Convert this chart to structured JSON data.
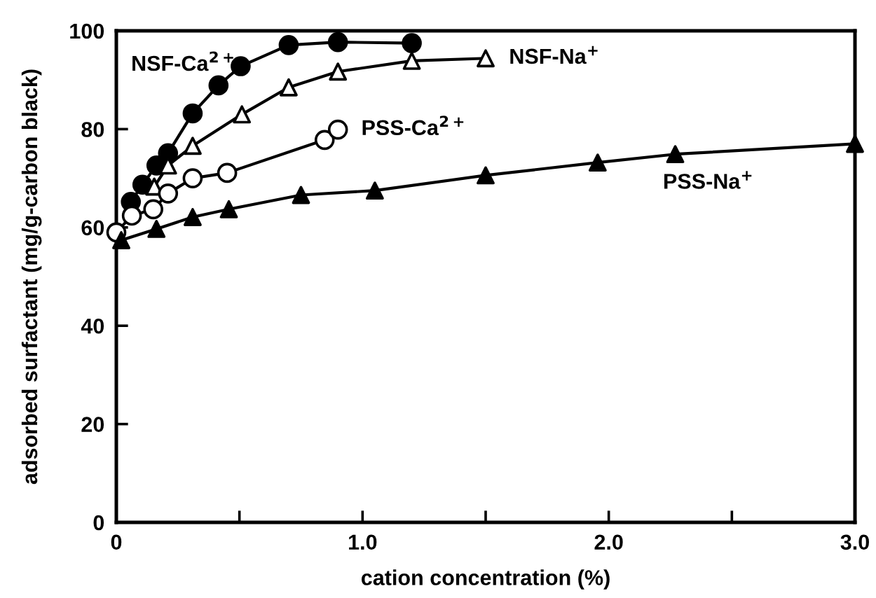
{
  "chart_data": {
    "type": "line",
    "xlabel": "cation concentration (%)",
    "ylabel": "adsorbed surfactant (mg/g-carbon black)",
    "xlim": [
      0,
      3.0
    ],
    "ylim": [
      0,
      100
    ],
    "xticks": [
      0,
      {
        "value": 0.5,
        "label": null
      },
      {
        "value": 1.0,
        "label": "1.0"
      },
      {
        "value": 1.5,
        "label": null
      },
      {
        "value": 2.0,
        "label": "2.0"
      },
      {
        "value": 2.5,
        "label": null
      },
      {
        "value": 3.0,
        "label": "3.0"
      }
    ],
    "yticks": [
      0,
      20,
      40,
      60,
      80,
      100
    ],
    "grid": false,
    "legend": false,
    "line_style": "solid",
    "series": [
      {
        "name": "NSF-Ca$^{2+}$",
        "color": "#000000",
        "marker": "circle",
        "colors": [
          "#000000",
          "#000000",
          "#000000",
          "#000000",
          "#000000",
          "#000000",
          "#000000",
          "#000000",
          "#000000",
          "#000000"
        ],
        "x": [
          0.059,
          0.106,
          0.163,
          0.21,
          0.31,
          0.415,
          0.505,
          0.7,
          0.9,
          1.2
        ],
        "values": [
          65.2,
          68.7,
          72.6,
          75.1,
          83.2,
          88.9,
          92.8,
          97.1,
          97.7,
          97.5
        ]
      },
      {
        "name": "NSF-Na$^{+}$",
        "color": "#000000",
        "marker": "triangle",
        "colors": [
          "#ffffff",
          "#ffffff",
          "#ffffff",
          "#ffffff",
          "#ffffff",
          "#ffffff",
          "#ffffff",
          "#ffffff"
        ],
        "x": [
          0.154,
          0.21,
          0.31,
          0.51,
          0.7,
          0.9,
          1.2,
          1.5
        ],
        "values": [
          68.3,
          72.6,
          76.6,
          83.0,
          88.5,
          91.7,
          93.9,
          94.4
        ]
      },
      {
        "name": "PSS-Ca$^{2+}$",
        "color": "#000000",
        "marker": "circle",
        "colors": [
          "#ffffff",
          "#ffffff",
          "#ffffff",
          "#ffffff",
          "#ffffff",
          "#ffffff",
          "#ffffff",
          "#ffffff"
        ],
        "x": [
          0.0,
          0.063,
          0.15,
          0.21,
          0.31,
          0.45,
          0.846,
          0.9
        ],
        "values": [
          59,
          62.4,
          63.7,
          66.9,
          70.0,
          71.1,
          77.8,
          79.9
        ]
      },
      {
        "name": "PSS-Na$^{+}$",
        "color": "#000000",
        "marker": "triangle",
        "colors": [
          "#000000",
          "#000000",
          "#000000",
          "#000000",
          "#000000",
          "#000000",
          "#000000",
          "#000000",
          "#000000",
          "#000000"
        ],
        "x": [
          0.02,
          0.163,
          0.31,
          0.457,
          0.75,
          1.05,
          1.5,
          1.955,
          2.27,
          3.0
        ],
        "values": [
          57.4,
          59.7,
          62.1,
          63.7,
          66.6,
          67.5,
          70.6,
          73.2,
          74.9,
          77
        ]
      }
    ]
  }
}
